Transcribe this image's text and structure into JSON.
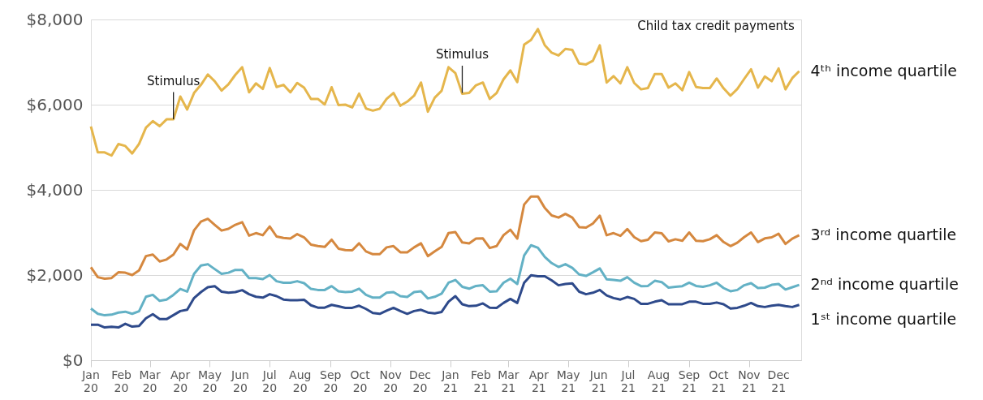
{
  "chart_data": {
    "type": "line",
    "x": [
      "2020-01-01",
      "2020-01-08",
      "2020-01-15",
      "2020-01-22",
      "2020-01-29",
      "2020-02-05",
      "2020-02-12",
      "2020-02-19",
      "2020-02-26",
      "2020-03-04",
      "2020-03-11",
      "2020-03-18",
      "2020-03-25",
      "2020-04-01",
      "2020-04-08",
      "2020-04-15",
      "2020-04-22",
      "2020-04-29",
      "2020-05-06",
      "2020-05-13",
      "2020-05-20",
      "2020-05-27",
      "2020-06-03",
      "2020-06-10",
      "2020-06-17",
      "2020-06-24",
      "2020-07-01",
      "2020-07-08",
      "2020-07-15",
      "2020-07-22",
      "2020-07-29",
      "2020-08-05",
      "2020-08-12",
      "2020-08-19",
      "2020-08-26",
      "2020-09-02",
      "2020-09-09",
      "2020-09-16",
      "2020-09-23",
      "2020-09-30",
      "2020-10-07",
      "2020-10-14",
      "2020-10-21",
      "2020-10-28",
      "2020-11-04",
      "2020-11-11",
      "2020-11-18",
      "2020-11-25",
      "2020-12-02",
      "2020-12-09",
      "2020-12-16",
      "2020-12-23",
      "2020-12-30",
      "2021-01-06",
      "2021-01-13",
      "2021-01-20",
      "2021-01-27",
      "2021-02-03",
      "2021-02-10",
      "2021-02-17",
      "2021-02-24",
      "2021-03-03",
      "2021-03-10",
      "2021-03-17",
      "2021-03-24",
      "2021-03-31",
      "2021-04-07",
      "2021-04-14",
      "2021-04-21",
      "2021-04-28",
      "2021-05-05",
      "2021-05-12",
      "2021-05-19",
      "2021-05-26",
      "2021-06-02",
      "2021-06-09",
      "2021-06-16",
      "2021-06-23",
      "2021-06-30",
      "2021-07-07",
      "2021-07-14",
      "2021-07-21",
      "2021-07-28",
      "2021-08-04",
      "2021-08-11",
      "2021-08-18",
      "2021-08-25",
      "2021-09-01",
      "2021-09-08",
      "2021-09-15",
      "2021-09-22",
      "2021-09-29",
      "2021-10-06",
      "2021-10-13",
      "2021-10-20",
      "2021-10-27",
      "2021-11-03",
      "2021-11-10",
      "2021-11-17",
      "2021-11-24",
      "2021-12-01",
      "2021-12-08",
      "2021-12-15",
      "2021-12-22"
    ],
    "series": [
      {
        "name": "4ᵗʰ income quartile",
        "color": "#e5b64c",
        "values": [
          5490,
          4880,
          4880,
          4805,
          5075,
          5030,
          4855,
          5080,
          5460,
          5615,
          5495,
          5655,
          5655,
          6190,
          5885,
          6275,
          6465,
          6710,
          6550,
          6330,
          6480,
          6700,
          6880,
          6290,
          6500,
          6370,
          6860,
          6415,
          6465,
          6290,
          6510,
          6400,
          6135,
          6135,
          6005,
          6410,
          5990,
          6000,
          5935,
          6260,
          5910,
          5860,
          5905,
          6135,
          6275,
          5975,
          6070,
          6210,
          6520,
          5835,
          6165,
          6325,
          6880,
          6740,
          6255,
          6275,
          6455,
          6520,
          6135,
          6275,
          6595,
          6805,
          6530,
          7410,
          7520,
          7775,
          7395,
          7220,
          7155,
          7310,
          7285,
          6965,
          6945,
          7030,
          7395,
          6520,
          6670,
          6500,
          6880,
          6510,
          6360,
          6390,
          6720,
          6720,
          6400,
          6500,
          6340,
          6765,
          6415,
          6390,
          6390,
          6615,
          6385,
          6210,
          6370,
          6605,
          6830,
          6400,
          6660,
          6550,
          6850,
          6360,
          6625,
          6785
        ]
      },
      {
        "name": "3ʳᵈ income quartile",
        "color": "#d5883f",
        "values": [
          2185,
          1950,
          1915,
          1930,
          2065,
          2055,
          2000,
          2110,
          2445,
          2480,
          2320,
          2365,
          2480,
          2730,
          2605,
          3050,
          3255,
          3320,
          3180,
          3045,
          3085,
          3180,
          3240,
          2925,
          2985,
          2935,
          3140,
          2905,
          2870,
          2855,
          2960,
          2885,
          2715,
          2680,
          2660,
          2830,
          2620,
          2585,
          2580,
          2745,
          2555,
          2490,
          2490,
          2650,
          2680,
          2535,
          2535,
          2650,
          2745,
          2445,
          2555,
          2660,
          2985,
          3010,
          2765,
          2745,
          2855,
          2860,
          2635,
          2680,
          2935,
          3065,
          2855,
          3655,
          3845,
          3845,
          3575,
          3400,
          3350,
          3435,
          3350,
          3125,
          3115,
          3210,
          3395,
          2935,
          2985,
          2920,
          3080,
          2890,
          2795,
          2830,
          3000,
          2980,
          2790,
          2840,
          2805,
          3000,
          2805,
          2795,
          2840,
          2935,
          2775,
          2680,
          2760,
          2890,
          3000,
          2775,
          2860,
          2885,
          2970,
          2730,
          2855,
          2935
        ]
      },
      {
        "name": "2ⁿᵈ income quartile",
        "color": "#63b1c5",
        "values": [
          1215,
          1090,
          1055,
          1070,
          1120,
          1140,
          1090,
          1150,
          1490,
          1535,
          1395,
          1425,
          1535,
          1675,
          1610,
          2030,
          2225,
          2255,
          2140,
          2030,
          2055,
          2120,
          2120,
          1930,
          1930,
          1905,
          2000,
          1855,
          1820,
          1820,
          1855,
          1810,
          1675,
          1650,
          1650,
          1740,
          1620,
          1600,
          1610,
          1680,
          1535,
          1470,
          1470,
          1585,
          1600,
          1505,
          1485,
          1600,
          1620,
          1450,
          1490,
          1565,
          1820,
          1885,
          1725,
          1680,
          1745,
          1760,
          1610,
          1620,
          1820,
          1915,
          1790,
          2460,
          2700,
          2640,
          2425,
          2280,
          2190,
          2255,
          2170,
          2015,
          1980,
          2065,
          2155,
          1900,
          1885,
          1865,
          1950,
          1820,
          1740,
          1745,
          1865,
          1835,
          1705,
          1725,
          1740,
          1820,
          1745,
          1725,
          1760,
          1820,
          1695,
          1620,
          1650,
          1760,
          1810,
          1695,
          1705,
          1770,
          1790,
          1660,
          1715,
          1770
        ]
      },
      {
        "name": "1ˢᵗ income quartile",
        "color": "#2e4a8b",
        "values": [
          835,
          835,
          770,
          785,
          770,
          855,
          790,
          805,
          985,
          1080,
          965,
          965,
          1060,
          1155,
          1185,
          1460,
          1600,
          1715,
          1740,
          1610,
          1585,
          1600,
          1645,
          1550,
          1490,
          1470,
          1550,
          1505,
          1425,
          1410,
          1410,
          1420,
          1290,
          1235,
          1235,
          1300,
          1265,
          1230,
          1230,
          1280,
          1205,
          1110,
          1090,
          1165,
          1230,
          1155,
          1090,
          1155,
          1185,
          1120,
          1100,
          1135,
          1375,
          1505,
          1315,
          1270,
          1280,
          1335,
          1235,
          1230,
          1345,
          1440,
          1345,
          1820,
          1995,
          1970,
          1970,
          1875,
          1760,
          1790,
          1805,
          1610,
          1550,
          1585,
          1650,
          1520,
          1460,
          1425,
          1485,
          1440,
          1325,
          1325,
          1375,
          1410,
          1315,
          1315,
          1315,
          1375,
          1375,
          1325,
          1325,
          1355,
          1315,
          1215,
          1230,
          1280,
          1345,
          1270,
          1250,
          1280,
          1300,
          1270,
          1250,
          1300
        ]
      }
    ],
    "xlim": [
      "2020-01-01",
      "2021-12-24"
    ],
    "xticks": [
      {
        "value": "2020-01-01",
        "label": "Jan 20"
      },
      {
        "value": "2020-02-01",
        "label": "Feb 20"
      },
      {
        "value": "2020-03-01",
        "label": "Mar 20"
      },
      {
        "value": "2020-04-01",
        "label": "Apr 20"
      },
      {
        "value": "2020-05-01",
        "label": "May 20"
      },
      {
        "value": "2020-06-01",
        "label": "Jun 20"
      },
      {
        "value": "2020-07-01",
        "label": "Jul 20"
      },
      {
        "value": "2020-08-01",
        "label": "Aug 20"
      },
      {
        "value": "2020-09-01",
        "label": "Sep 20"
      },
      {
        "value": "2020-10-01",
        "label": "Oct 20"
      },
      {
        "value": "2020-11-01",
        "label": "Nov 20"
      },
      {
        "value": "2020-12-01",
        "label": "Dec 20"
      },
      {
        "value": "2021-01-01",
        "label": "Jan 21"
      },
      {
        "value": "2021-02-01",
        "label": "Feb 21"
      },
      {
        "value": "2021-03-01",
        "label": "Mar 21"
      },
      {
        "value": "2021-04-01",
        "label": "Apr 21"
      },
      {
        "value": "2021-05-01",
        "label": "May 21"
      },
      {
        "value": "2021-06-01",
        "label": "Jun 21"
      },
      {
        "value": "2021-07-01",
        "label": "Jul 21"
      },
      {
        "value": "2021-08-01",
        "label": "Aug 21"
      },
      {
        "value": "2021-09-01",
        "label": "Sep 21"
      },
      {
        "value": "2021-10-01",
        "label": "Oct 21"
      },
      {
        "value": "2021-11-01",
        "label": "Nov 21"
      },
      {
        "value": "2021-12-01",
        "label": "Dec 21"
      }
    ],
    "ylim": [
      0,
      8000
    ],
    "yticks": [
      {
        "value": 0,
        "label": "$0"
      },
      {
        "value": 2000,
        "label": "$2,000"
      },
      {
        "value": 4000,
        "label": "$4,000"
      },
      {
        "value": 6000,
        "label": "$6,000"
      },
      {
        "value": 8000,
        "label": "$8,000"
      }
    ],
    "grid": "y",
    "legend": false,
    "marker": "none",
    "line_style": "solid",
    "annotations": [
      {
        "text": "Stimulus",
        "x": "2020-03-25",
        "y": 5655
      },
      {
        "text": "Stimulus",
        "x": "2021-01-13",
        "y": 6275
      },
      "Child tax credit payments"
    ]
  }
}
